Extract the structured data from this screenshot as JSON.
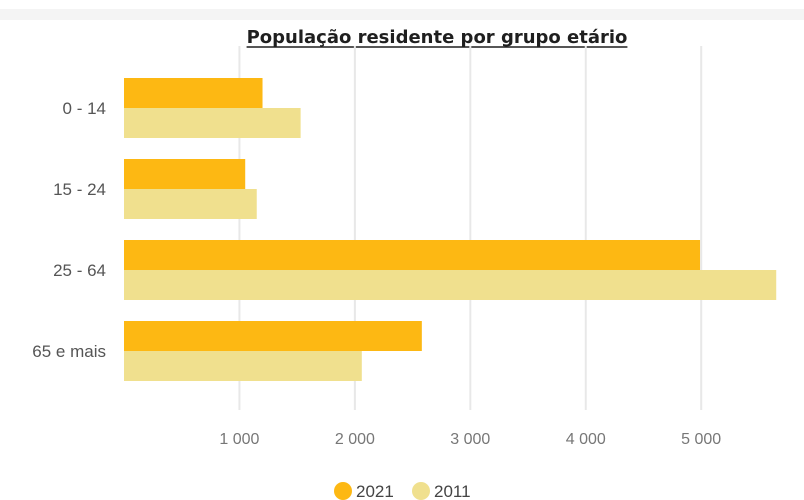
{
  "chart_data": {
    "type": "bar",
    "orientation": "horizontal",
    "title": "População residente por grupo etário",
    "categories": [
      "0 - 14",
      "15 - 24",
      "25 - 64",
      "65 e mais"
    ],
    "series": [
      {
        "name": "2021",
        "color": "#FDB813",
        "values": [
          1200,
          1050,
          4990,
          2580
        ]
      },
      {
        "name": "2011",
        "color": "#F0E08E",
        "values": [
          1530,
          1150,
          5650,
          2060
        ]
      }
    ],
    "xlim": [
      0,
      5700
    ],
    "xticks": [
      {
        "value": 1000,
        "label": "1 000"
      },
      {
        "value": 2000,
        "label": "2 000"
      },
      {
        "value": 3000,
        "label": "3 000"
      },
      {
        "value": 4000,
        "label": "4 000"
      },
      {
        "value": 5000,
        "label": "5 000"
      }
    ],
    "grid": true,
    "legend": "bottom-center",
    "xlabel": "",
    "ylabel": ""
  }
}
